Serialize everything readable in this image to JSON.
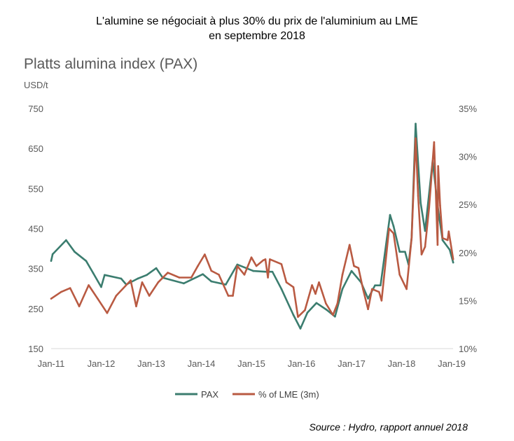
{
  "figure_title_line1": "L'alumine se négociait à plus 30% du prix de l'aluminium au LME",
  "figure_title_line2": "en septembre 2018",
  "source": "Source : Hydro, rapport annuel 2018",
  "chart_data": {
    "type": "line",
    "title": "Platts alumina index (PAX)",
    "ylabel": "USD/t",
    "y_left_lim": [
      150,
      750
    ],
    "y_left_ticks": [
      "150",
      "250",
      "350",
      "450",
      "550",
      "650",
      "750"
    ],
    "y_right_lim": [
      10,
      35
    ],
    "y_right_ticks": [
      "10%",
      "15%",
      "20%",
      "25%",
      "30%",
      "35%"
    ],
    "x_ticks": [
      "Jan-11",
      "Jan-12",
      "Jan-13",
      "Jan-14",
      "Jan-15",
      "Jan-16",
      "Jan-17",
      "Jan-18",
      "Jan-19"
    ],
    "grid": false,
    "legend": "bottom",
    "series": [
      {
        "name": "PAX",
        "axis": "left",
        "color": "#3b7d6f",
        "points": [
          [
            "2011-01-01",
            369
          ],
          [
            "2011-01-12",
            386
          ],
          [
            "2011-04-19",
            421
          ],
          [
            "2011-06-20",
            392
          ],
          [
            "2011-09-13",
            369
          ],
          [
            "2011-11-03",
            339
          ],
          [
            "2012-01-01",
            304
          ],
          [
            "2012-01-26",
            334
          ],
          [
            "2012-05-25",
            325
          ],
          [
            "2012-07-01",
            310
          ],
          [
            "2012-09-24",
            325
          ],
          [
            "2012-11-29",
            334
          ],
          [
            "2013-02-07",
            351
          ],
          [
            "2013-03-24",
            327
          ],
          [
            "2013-08-25",
            313
          ],
          [
            "2014-01-12",
            336
          ],
          [
            "2014-03-13",
            318
          ],
          [
            "2014-06-27",
            310
          ],
          [
            "2014-09-20",
            360
          ],
          [
            "2015-01-15",
            344
          ],
          [
            "2015-04-12",
            342
          ],
          [
            "2015-06-02",
            342
          ],
          [
            "2015-08-07",
            299
          ],
          [
            "2015-11-03",
            234
          ],
          [
            "2015-12-24",
            200
          ],
          [
            "2016-02-14",
            240
          ],
          [
            "2016-04-19",
            264
          ],
          [
            "2016-07-01",
            247
          ],
          [
            "2016-09-02",
            230
          ],
          [
            "2016-10-26",
            299
          ],
          [
            "2017-01-01",
            344
          ],
          [
            "2017-03-09",
            316
          ],
          [
            "2017-04-30",
            275
          ],
          [
            "2017-06-20",
            308
          ],
          [
            "2017-07-30",
            308
          ],
          [
            "2017-10-08",
            484
          ],
          [
            "2017-11-03",
            456
          ],
          [
            "2017-12-17",
            392
          ],
          [
            "2018-01-26",
            392
          ],
          [
            "2018-02-21",
            360
          ],
          [
            "2018-03-13",
            427
          ],
          [
            "2018-04-12",
            712
          ],
          [
            "2018-05-18",
            514
          ],
          [
            "2018-06-20",
            444
          ],
          [
            "2018-08-14",
            619
          ],
          [
            "2018-09-24",
            497
          ],
          [
            "2018-10-26",
            421
          ],
          [
            "2018-12-17",
            397
          ],
          [
            "2019-01-12",
            365
          ]
        ]
      },
      {
        "name": "% of LME (3m)",
        "axis": "right",
        "color": "#b95a42",
        "points": [
          [
            "2011-01-01",
            15.2
          ],
          [
            "2011-03-13",
            15.9
          ],
          [
            "2011-05-18",
            16.3
          ],
          [
            "2011-07-23",
            14.4
          ],
          [
            "2011-10-01",
            16.6
          ],
          [
            "2011-12-06",
            15.2
          ],
          [
            "2012-02-14",
            13.7
          ],
          [
            "2012-04-19",
            15.5
          ],
          [
            "2012-08-03",
            17.1
          ],
          [
            "2012-09-13",
            14.4
          ],
          [
            "2012-10-26",
            16.9
          ],
          [
            "2012-12-17",
            15.5
          ],
          [
            "2013-02-21",
            16.9
          ],
          [
            "2013-04-30",
            17.9
          ],
          [
            "2013-07-23",
            17.4
          ],
          [
            "2013-10-19",
            17.4
          ],
          [
            "2013-12-06",
            18.6
          ],
          [
            "2014-01-26",
            19.8
          ],
          [
            "2014-03-13",
            18.1
          ],
          [
            "2014-05-07",
            17.7
          ],
          [
            "2014-07-15",
            15.5
          ],
          [
            "2014-08-18",
            15.5
          ],
          [
            "2014-09-20",
            18.6
          ],
          [
            "2014-11-11",
            17.7
          ],
          [
            "2015-01-01",
            19.5
          ],
          [
            "2015-02-07",
            18.6
          ],
          [
            "2015-03-27",
            19.2
          ],
          [
            "2015-04-12",
            19.3
          ],
          [
            "2015-04-30",
            17.4
          ],
          [
            "2015-05-14",
            19.3
          ],
          [
            "2015-08-07",
            18.8
          ],
          [
            "2015-09-13",
            16.9
          ],
          [
            "2015-11-03",
            16.4
          ],
          [
            "2015-12-06",
            13.3
          ],
          [
            "2016-01-26",
            14.0
          ],
          [
            "2016-03-17",
            16.6
          ],
          [
            "2016-04-12",
            15.7
          ],
          [
            "2016-05-07",
            16.9
          ],
          [
            "2016-06-27",
            14.7
          ],
          [
            "2016-08-18",
            13.5
          ],
          [
            "2016-09-20",
            14.7
          ],
          [
            "2016-10-26",
            17.7
          ],
          [
            "2016-12-17",
            20.8
          ],
          [
            "2017-01-19",
            18.6
          ],
          [
            "2017-02-21",
            18.4
          ],
          [
            "2017-03-24",
            16.2
          ],
          [
            "2017-04-30",
            14.1
          ],
          [
            "2017-05-29",
            16.2
          ],
          [
            "2017-07-19",
            15.9
          ],
          [
            "2017-08-07",
            15.0
          ],
          [
            "2017-10-01",
            22.5
          ],
          [
            "2017-11-03",
            22.0
          ],
          [
            "2017-12-17",
            17.7
          ],
          [
            "2018-02-07",
            16.2
          ],
          [
            "2018-03-13",
            21.5
          ],
          [
            "2018-04-12",
            31.9
          ],
          [
            "2018-04-30",
            25.9
          ],
          [
            "2018-05-25",
            19.8
          ],
          [
            "2018-06-20",
            20.6
          ],
          [
            "2018-07-19",
            24.7
          ],
          [
            "2018-08-25",
            31.5
          ],
          [
            "2018-09-20",
            20.8
          ],
          [
            "2018-09-24",
            29.0
          ],
          [
            "2018-10-08",
            24.9
          ],
          [
            "2018-10-26",
            21.5
          ],
          [
            "2018-12-02",
            21.3
          ],
          [
            "2018-12-10",
            22.2
          ],
          [
            "2019-01-12",
            19.3
          ]
        ]
      }
    ]
  }
}
